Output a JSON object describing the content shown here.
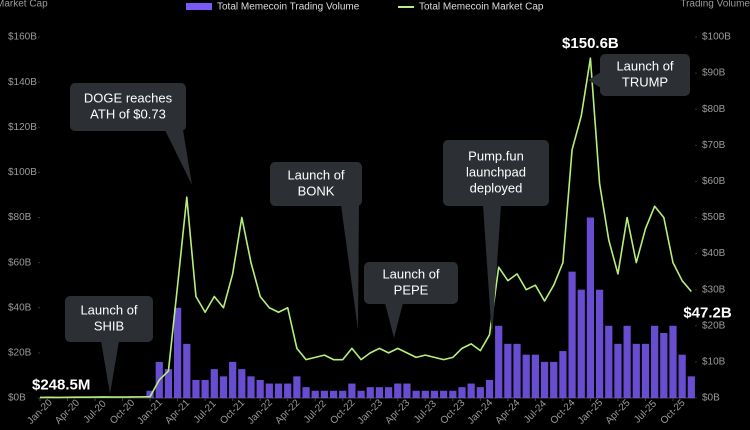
{
  "chart_data": {
    "type": "bar-line",
    "ylabel": "Market Cap",
    "y2label": "Trading Volume",
    "x": [
      "2020-01",
      "2020-02",
      "2020-03",
      "2020-04",
      "2020-05",
      "2020-06",
      "2020-07",
      "2020-08",
      "2020-09",
      "2020-10",
      "2020-11",
      "2020-12",
      "2021-01",
      "2021-02",
      "2021-03",
      "2021-04",
      "2021-05",
      "2021-06",
      "2021-07",
      "2021-08",
      "2021-09",
      "2021-10",
      "2021-11",
      "2021-12",
      "2022-01",
      "2022-02",
      "2022-03",
      "2022-04",
      "2022-05",
      "2022-06",
      "2022-07",
      "2022-08",
      "2022-09",
      "2022-10",
      "2022-11",
      "2022-12",
      "2023-01",
      "2023-02",
      "2023-03",
      "2023-04",
      "2023-05",
      "2023-06",
      "2023-07",
      "2023-08",
      "2023-09",
      "2023-10",
      "2023-11",
      "2023-12",
      "2024-01",
      "2024-02",
      "2024-03",
      "2024-04",
      "2024-05",
      "2024-06",
      "2024-07",
      "2024-08",
      "2024-09",
      "2024-10",
      "2024-11",
      "2024-12",
      "2025-01",
      "2025-02",
      "2025-03",
      "2025-04",
      "2025-05",
      "2025-06",
      "2025-07",
      "2025-08",
      "2025-09",
      "2025-10",
      "2025-11",
      "2025-12"
    ],
    "series": [
      {
        "name": "Total Memecoin Trading Volume",
        "color": "#7a5af5",
        "axis": "y2",
        "values": [
          0.05,
          0.05,
          0.05,
          0.05,
          0.05,
          0.05,
          0.05,
          0.05,
          0.05,
          0.05,
          0.05,
          0.05,
          2,
          10,
          8,
          25,
          15,
          5,
          5,
          8,
          6,
          10,
          8,
          6,
          5,
          4,
          4,
          4,
          6,
          3,
          2,
          2,
          2,
          2,
          4,
          2,
          3,
          3,
          3,
          4,
          4,
          2,
          2,
          2,
          2,
          2,
          3,
          4,
          3,
          5,
          20,
          15,
          15,
          12,
          12,
          10,
          10,
          13,
          35,
          30,
          50,
          30,
          20,
          15,
          20,
          15,
          15,
          20,
          18,
          20,
          12,
          6
        ]
      },
      {
        "name": "Total Memecoin Market Cap",
        "color": "#b6f07a",
        "values": [
          0.2485,
          0.3,
          0.25,
          0.3,
          0.35,
          0.35,
          0.4,
          0.45,
          0.4,
          0.4,
          0.45,
          0.5,
          0.6,
          8,
          12,
          50,
          89,
          45,
          38,
          45,
          40,
          55,
          80,
          60,
          45,
          40,
          38,
          40,
          22,
          17,
          18,
          19,
          17,
          17,
          22,
          17,
          20,
          22,
          20,
          22,
          20,
          18,
          19,
          18,
          17,
          18,
          22,
          24,
          21,
          28,
          58,
          52,
          55,
          48,
          50,
          43,
          50,
          60,
          110,
          125,
          150.6,
          95,
          70,
          55,
          80,
          60,
          75,
          85,
          80,
          60,
          52,
          47.2
        ],
        "value_labels": [
          "$248.5M",
          null,
          null,
          null,
          null,
          null,
          null,
          null,
          null,
          null,
          null,
          null,
          null,
          null,
          null,
          null,
          null,
          null,
          null,
          null,
          null,
          null,
          null,
          null,
          null,
          null,
          null,
          null,
          null,
          null,
          null,
          null,
          null,
          null,
          null,
          null,
          null,
          null,
          null,
          null,
          null,
          null,
          null,
          null,
          null,
          null,
          null,
          null,
          null,
          null,
          null,
          null,
          null,
          null,
          null,
          null,
          null,
          null,
          null,
          null,
          "$150.6B",
          null,
          null,
          null,
          null,
          null,
          null,
          null,
          null,
          null,
          null,
          "$47.2B"
        ]
      }
    ],
    "ylim": [
      0,
      160
    ],
    "yticks": [
      {
        "value": 0,
        "label": "$0B"
      },
      {
        "value": 20,
        "label": "$20B"
      },
      {
        "value": 40,
        "label": "$40B"
      },
      {
        "value": 60,
        "label": "$60B"
      },
      {
        "value": 80,
        "label": "$80B"
      },
      {
        "value": 100,
        "label": "$100B"
      },
      {
        "value": 120,
        "label": "$120B"
      },
      {
        "value": 140,
        "label": "$140B"
      },
      {
        "value": 160,
        "label": "$160B"
      }
    ],
    "y2lim": [
      0,
      100
    ],
    "y2ticks": [
      {
        "value": 0,
        "label": "$0B"
      },
      {
        "value": 10,
        "label": "$10B"
      },
      {
        "value": 20,
        "label": "$20B"
      },
      {
        "value": 30,
        "label": "$30B"
      },
      {
        "value": 40,
        "label": "$40B"
      },
      {
        "value": 50,
        "label": "$50B"
      },
      {
        "value": 60,
        "label": "$60B"
      },
      {
        "value": 70,
        "label": "$70B"
      },
      {
        "value": 80,
        "label": "$80B"
      },
      {
        "value": 90,
        "label": "$90B"
      },
      {
        "value": 100,
        "label": "$100B"
      }
    ],
    "xticks": [
      {
        "value": "2020-01",
        "label": "Jan-20"
      },
      {
        "value": "2020-04",
        "label": "Apr-20"
      },
      {
        "value": "2020-07",
        "label": "Jul-20"
      },
      {
        "value": "2020-10",
        "label": "Oct-20"
      },
      {
        "value": "2021-01",
        "label": "Jan-21"
      },
      {
        "value": "2021-04",
        "label": "Apr-21"
      },
      {
        "value": "2021-07",
        "label": "Jul-21"
      },
      {
        "value": "2021-10",
        "label": "Oct-21"
      },
      {
        "value": "2022-01",
        "label": "Jan-22"
      },
      {
        "value": "2022-04",
        "label": "Apr-22"
      },
      {
        "value": "2022-07",
        "label": "Jul-22"
      },
      {
        "value": "2022-10",
        "label": "Oct-22"
      },
      {
        "value": "2023-01",
        "label": "Jan-23"
      },
      {
        "value": "2023-04",
        "label": "Apr-23"
      },
      {
        "value": "2023-07",
        "label": "Jul-23"
      },
      {
        "value": "2023-10",
        "label": "Oct-23"
      },
      {
        "value": "2024-01",
        "label": "Jan-24"
      },
      {
        "value": "2024-04",
        "label": "Apr-24"
      },
      {
        "value": "2024-07",
        "label": "Jul-24"
      },
      {
        "value": "2024-10",
        "label": "Oct-24"
      },
      {
        "value": "2025-01",
        "label": "Jan-25"
      },
      {
        "value": "2025-04",
        "label": "Apr-25"
      },
      {
        "value": "2025-07",
        "label": "Jul-25"
      },
      {
        "value": "2025-10",
        "label": "Oct-25"
      }
    ],
    "annotations": [
      {
        "lines": [
          "Launch of",
          "SHIB"
        ]
      },
      {
        "lines": [
          "DOGE reaches",
          "ATH of $0.73"
        ]
      },
      {
        "lines": [
          "Launch of",
          "BONK"
        ]
      },
      {
        "lines": [
          "Launch of",
          "PEPE"
        ]
      },
      {
        "lines": [
          "Pump.fun",
          "launchpad",
          "deployed"
        ]
      },
      {
        "lines": [
          "Launch of",
          "TRUMP"
        ]
      }
    ]
  }
}
